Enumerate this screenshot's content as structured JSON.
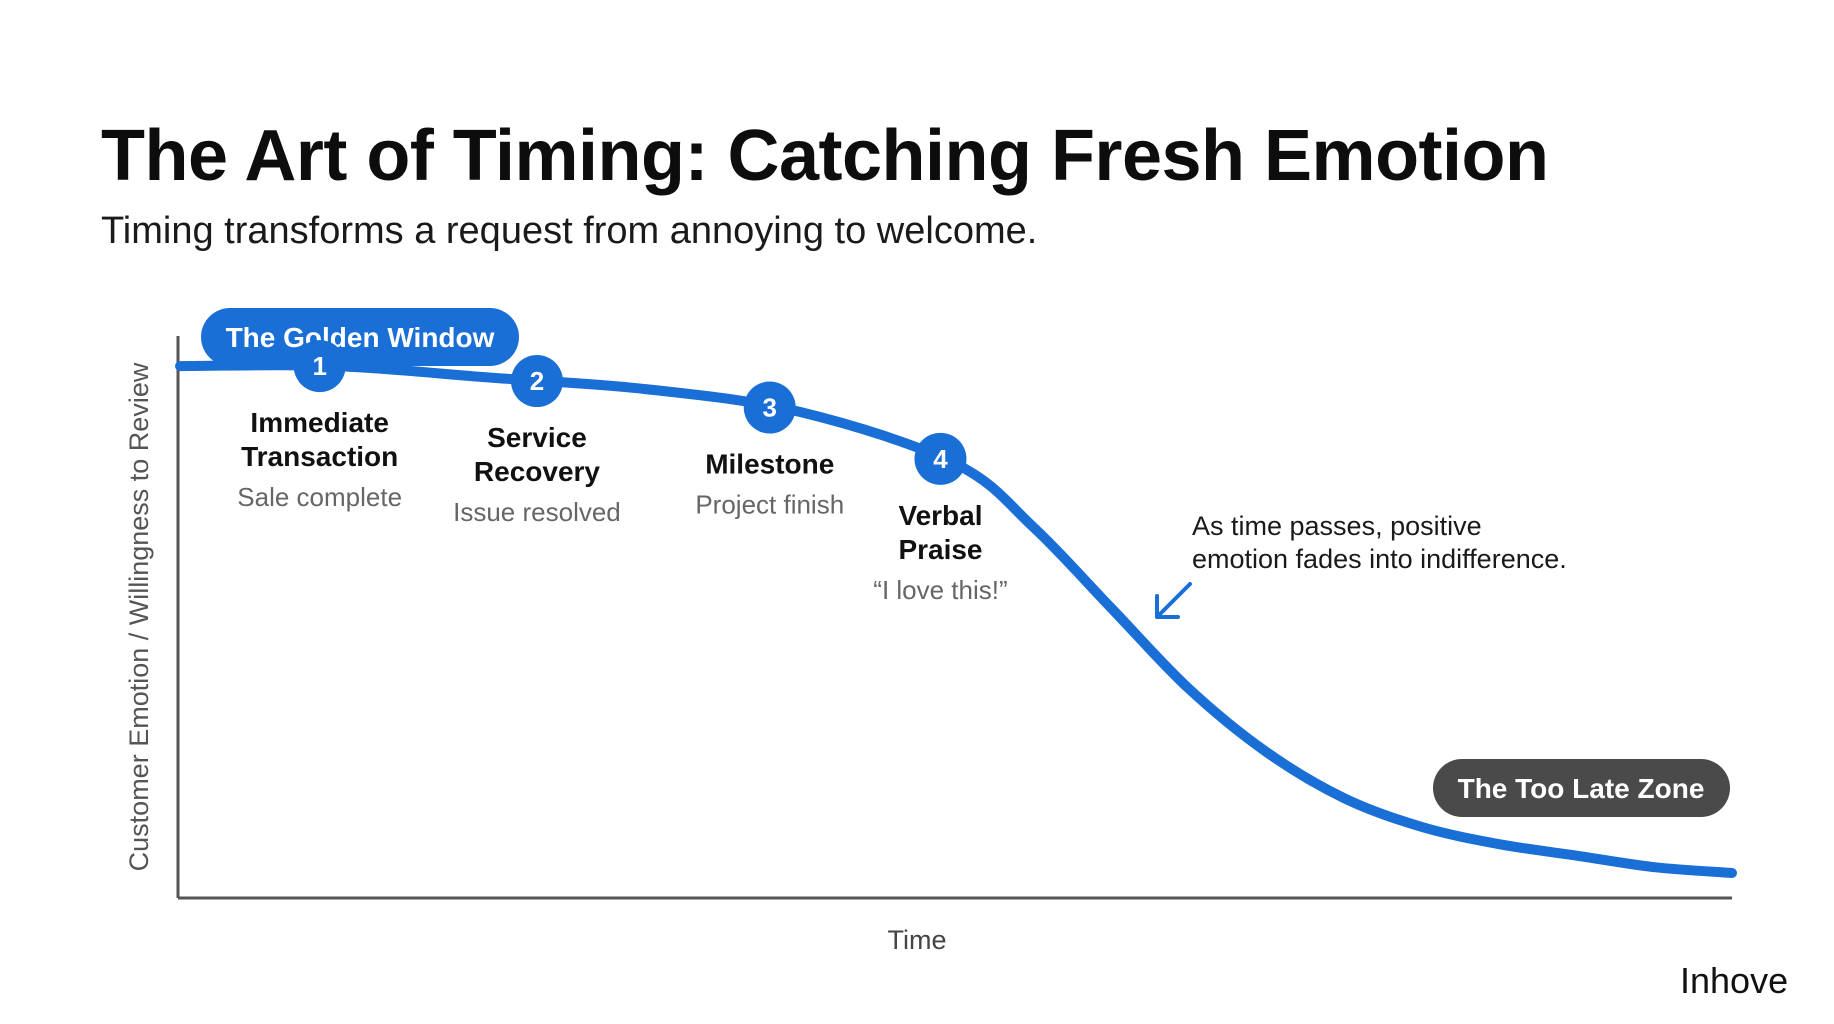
{
  "title": "The Art of Timing: Catching Fresh Emotion",
  "subtitle": "Timing transforms a request from annoying to welcome.",
  "brand": "Inhove",
  "colors": {
    "accent": "#1a6fd6",
    "dark_pill": "#4a4a4a",
    "axis": "#555555",
    "muted_text": "#666666"
  },
  "chart_data": {
    "type": "line",
    "title": "The Art of Timing: Catching Fresh Emotion",
    "xlabel": "Time",
    "ylabel": "Customer Emotion / Willingness to Review",
    "xlim": [
      0,
      100
    ],
    "ylim": [
      0,
      100
    ],
    "grid": false,
    "series": [
      {
        "name": "Customer Emotion",
        "x": [
          0,
          10,
          20,
          30,
          40,
          50,
          55,
          60,
          65,
          70,
          75,
          80,
          85,
          90,
          95,
          100
        ],
        "values": [
          92,
          92,
          90,
          88,
          84,
          75,
          64,
          50,
          36,
          25,
          17,
          12,
          9,
          7,
          5,
          4
        ]
      }
    ],
    "milestones": [
      {
        "number": "1",
        "title_lines": [
          "Immediate",
          "Transaction"
        ],
        "caption": "Sale complete",
        "x": 9
      },
      {
        "number": "2",
        "title_lines": [
          "Service",
          "Recovery"
        ],
        "caption": "Issue resolved",
        "x": 23
      },
      {
        "number": "3",
        "title_lines": [
          "Milestone"
        ],
        "caption": "Project finish",
        "x": 38
      },
      {
        "number": "4",
        "title_lines": [
          "Verbal",
          "Praise"
        ],
        "caption": "“I love this!”",
        "x": 49
      }
    ],
    "zones": {
      "golden": "The Golden Window",
      "late": "The Too Late Zone"
    },
    "annotation": {
      "lines": [
        "As time passes, positive",
        "emotion fades into indifference."
      ]
    }
  }
}
